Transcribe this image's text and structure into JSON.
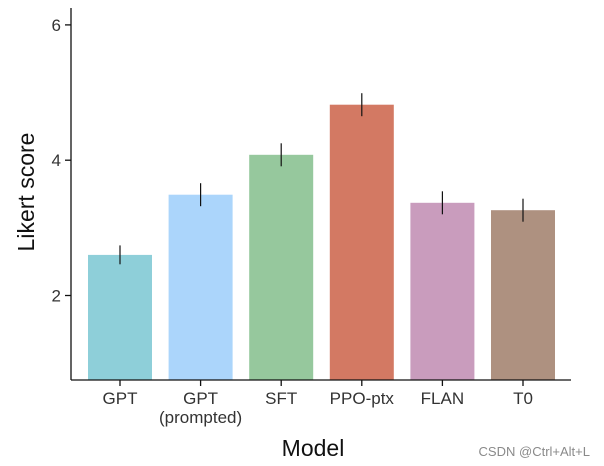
{
  "chart_data": {
    "type": "bar",
    "categories": [
      "GPT",
      "GPT\n(prompted)",
      "SFT",
      "PPO-ptx",
      "FLAN",
      "T0"
    ],
    "values": [
      2.6,
      3.49,
      4.08,
      4.82,
      3.37,
      3.26
    ],
    "error": [
      0.14,
      0.17,
      0.17,
      0.17,
      0.17,
      0.17
    ],
    "colors": [
      "#8ecfd9",
      "#abd5fb",
      "#96c89d",
      "#d37963",
      "#c99cbd",
      "#ae9180"
    ],
    "xlabel": "Model",
    "ylabel": "Likert score",
    "ylim": [
      0.75,
      6.25
    ],
    "yticks": [
      2,
      4,
      6
    ],
    "grid": false
  },
  "watermark": "CSDN @Ctrl+Alt+L"
}
